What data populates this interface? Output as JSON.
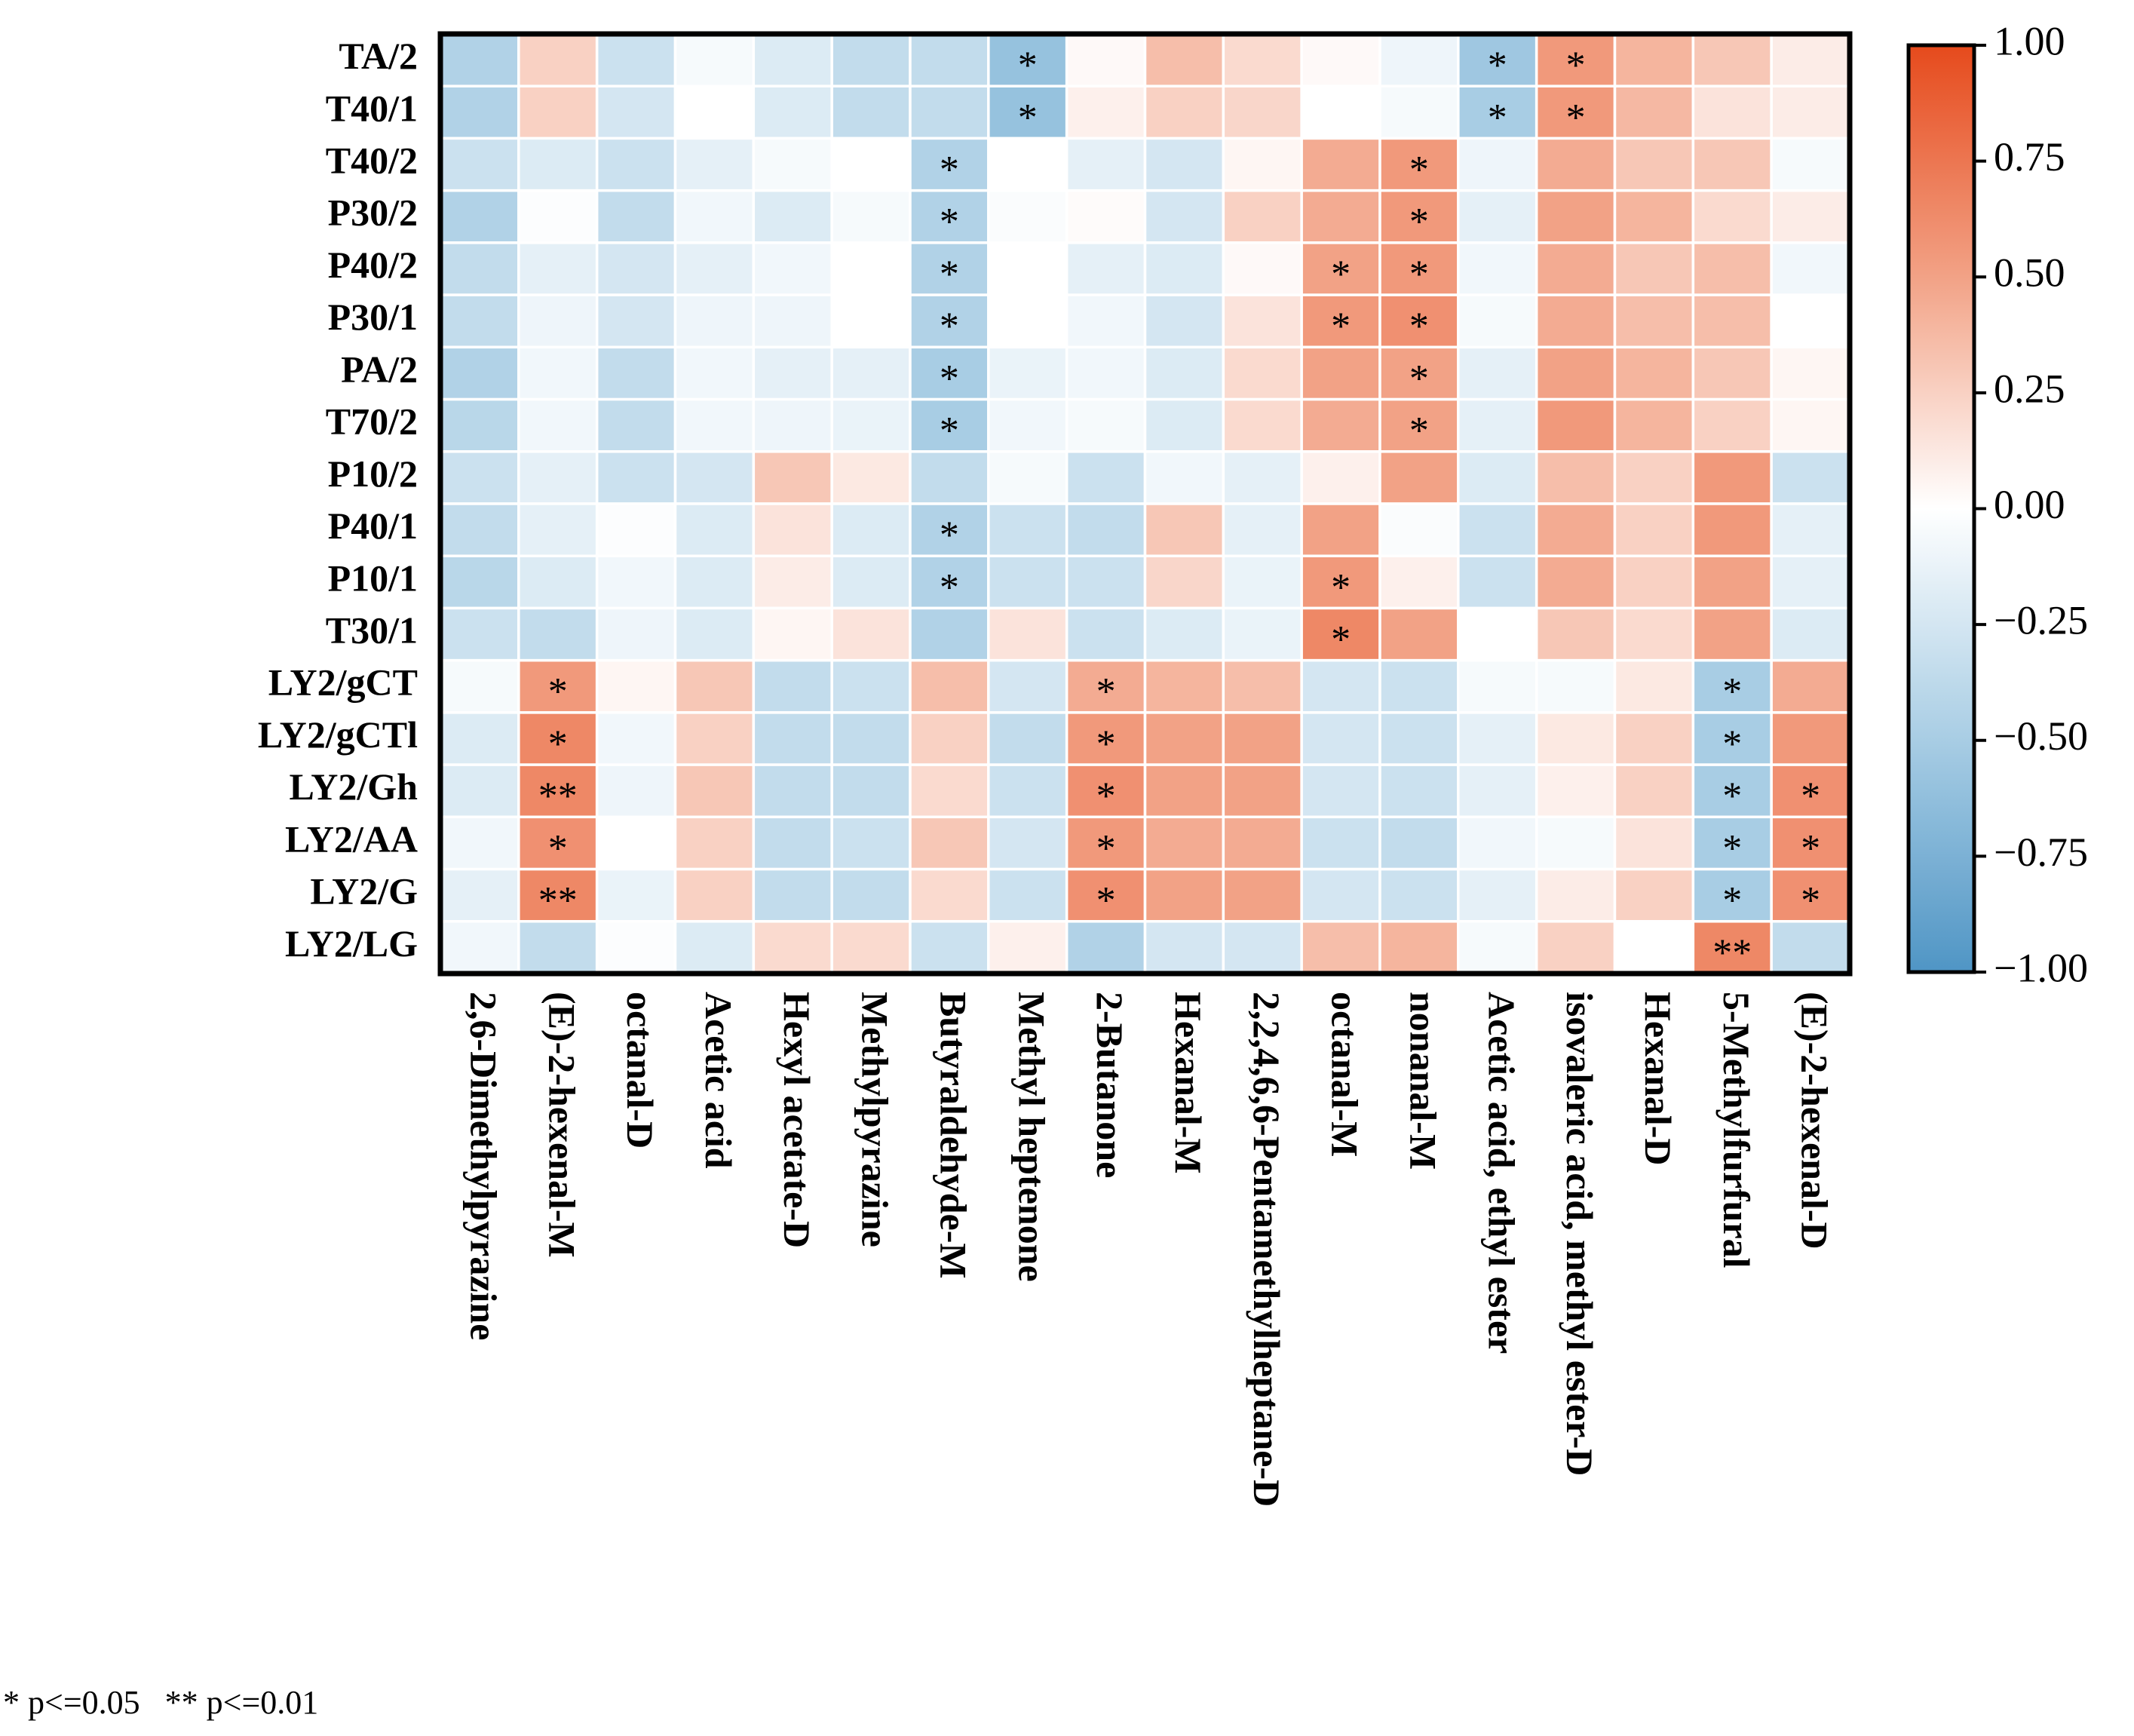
{
  "chart_data": {
    "type": "heatmap",
    "rows": [
      "TA/2",
      "T40/1",
      "T40/2",
      "P30/2",
      "P40/2",
      "P30/1",
      "PA/2",
      "T70/2",
      "P10/2",
      "P40/1",
      "P10/1",
      "T30/1",
      "LY2/gCT",
      "LY2/gCTl",
      "LY2/Gh",
      "LY2/AA",
      "LY2/G",
      "LY2/LG"
    ],
    "columns": [
      "2,6-Dimethylpyrazine",
      "(E)-2-hexenal-M",
      "octanal-D",
      "Acetic acid",
      "Hexyl acetate-D",
      "Methylpyrazine",
      "Butyraldehyde-M",
      "Methyl heptenone",
      "2-Butanone",
      "Hexanal-M",
      "2,2,4,6,6-Pentamethylheptane-D",
      "octanal-M",
      "nonanal-M",
      "Acetic acid, ethyl ester",
      "isovaleric acid, methyl ester-D",
      "Hexanal-D",
      "5-Methylfurfural",
      "(E)-2-hexenal-D"
    ],
    "values": [
      [
        -0.45,
        0.25,
        -0.3,
        -0.05,
        -0.2,
        -0.35,
        -0.35,
        -0.6,
        0.03,
        0.35,
        0.2,
        0.03,
        -0.1,
        -0.55,
        0.55,
        0.4,
        0.3,
        0.1
      ],
      [
        -0.45,
        0.25,
        -0.25,
        0.0,
        -0.2,
        -0.35,
        -0.35,
        -0.6,
        0.08,
        0.25,
        0.22,
        0.0,
        -0.05,
        -0.5,
        0.55,
        0.38,
        0.15,
        0.1
      ],
      [
        -0.3,
        -0.2,
        -0.3,
        -0.15,
        -0.05,
        0.0,
        -0.45,
        0.0,
        -0.15,
        -0.25,
        0.05,
        0.45,
        0.55,
        -0.1,
        0.45,
        0.3,
        0.3,
        -0.05
      ],
      [
        -0.45,
        -0.02,
        -0.35,
        -0.08,
        -0.2,
        -0.05,
        -0.45,
        -0.03,
        0.02,
        -0.25,
        0.25,
        0.45,
        0.55,
        -0.15,
        0.5,
        0.4,
        0.2,
        0.1
      ],
      [
        -0.35,
        -0.15,
        -0.25,
        -0.15,
        -0.08,
        0.0,
        -0.45,
        0.0,
        -0.15,
        -0.2,
        0.03,
        0.5,
        0.55,
        -0.08,
        0.45,
        0.3,
        0.35,
        -0.08
      ],
      [
        -0.35,
        -0.1,
        -0.25,
        -0.1,
        -0.1,
        0.0,
        -0.45,
        0.0,
        -0.08,
        -0.25,
        0.15,
        0.55,
        0.6,
        -0.05,
        0.45,
        0.35,
        0.35,
        0.0
      ],
      [
        -0.45,
        -0.08,
        -0.35,
        -0.08,
        -0.15,
        -0.15,
        -0.5,
        -0.12,
        -0.08,
        -0.2,
        0.2,
        0.5,
        0.5,
        -0.15,
        0.5,
        0.4,
        0.3,
        0.05
      ],
      [
        -0.4,
        -0.08,
        -0.35,
        -0.08,
        -0.1,
        -0.12,
        -0.5,
        -0.08,
        -0.05,
        -0.2,
        0.2,
        0.45,
        0.5,
        -0.15,
        0.55,
        0.4,
        0.25,
        0.05
      ],
      [
        -0.3,
        -0.15,
        -0.3,
        -0.25,
        0.3,
        0.12,
        -0.35,
        -0.05,
        -0.3,
        -0.08,
        -0.15,
        0.08,
        0.5,
        -0.2,
        0.35,
        0.25,
        0.55,
        -0.3
      ],
      [
        -0.35,
        -0.15,
        -0.02,
        -0.2,
        0.15,
        -0.2,
        -0.45,
        -0.3,
        -0.35,
        0.3,
        -0.15,
        0.5,
        -0.03,
        -0.3,
        0.45,
        0.25,
        0.55,
        -0.15
      ],
      [
        -0.4,
        -0.2,
        -0.08,
        -0.2,
        0.1,
        -0.2,
        -0.45,
        -0.3,
        -0.3,
        0.22,
        -0.12,
        0.55,
        0.08,
        -0.3,
        0.45,
        0.25,
        0.5,
        -0.15
      ],
      [
        -0.3,
        -0.35,
        -0.1,
        -0.2,
        0.05,
        0.15,
        -0.45,
        0.15,
        -0.3,
        -0.2,
        -0.12,
        0.65,
        0.5,
        0.0,
        0.3,
        0.2,
        0.5,
        -0.2
      ],
      [
        -0.05,
        0.55,
        0.05,
        0.3,
        -0.35,
        -0.3,
        0.35,
        -0.25,
        0.45,
        0.4,
        0.35,
        -0.25,
        -0.3,
        -0.05,
        -0.05,
        0.12,
        -0.5,
        0.45
      ],
      [
        -0.2,
        0.65,
        -0.08,
        0.25,
        -0.35,
        -0.35,
        0.25,
        -0.35,
        0.55,
        0.5,
        0.5,
        -0.25,
        -0.3,
        -0.15,
        0.12,
        0.25,
        -0.5,
        0.55
      ],
      [
        -0.2,
        0.65,
        -0.1,
        0.3,
        -0.35,
        -0.35,
        0.2,
        -0.3,
        0.6,
        0.5,
        0.5,
        -0.25,
        -0.3,
        -0.15,
        0.08,
        0.25,
        -0.5,
        0.6
      ],
      [
        -0.08,
        0.6,
        0.0,
        0.25,
        -0.35,
        -0.3,
        0.3,
        -0.25,
        0.55,
        0.45,
        0.45,
        -0.3,
        -0.35,
        -0.08,
        -0.05,
        0.15,
        -0.5,
        0.6
      ],
      [
        -0.15,
        0.65,
        -0.12,
        0.25,
        -0.35,
        -0.35,
        0.2,
        -0.3,
        0.6,
        0.5,
        0.5,
        -0.25,
        -0.3,
        -0.15,
        0.1,
        0.25,
        -0.5,
        0.6
      ],
      [
        -0.08,
        -0.35,
        -0.02,
        -0.2,
        0.2,
        0.2,
        -0.3,
        0.08,
        -0.45,
        -0.25,
        -0.25,
        0.35,
        0.4,
        -0.05,
        0.25,
        0.0,
        0.65,
        -0.35
      ]
    ],
    "annotations": [
      {
        "row": "TA/2",
        "column": "Methyl heptenone",
        "label": "*"
      },
      {
        "row": "TA/2",
        "column": "Acetic acid, ethyl ester",
        "label": "*"
      },
      {
        "row": "TA/2",
        "column": "isovaleric acid, methyl ester-D",
        "label": "*"
      },
      {
        "row": "T40/1",
        "column": "Methyl heptenone",
        "label": "*"
      },
      {
        "row": "T40/1",
        "column": "Acetic acid, ethyl ester",
        "label": "*"
      },
      {
        "row": "T40/1",
        "column": "isovaleric acid, methyl ester-D",
        "label": "*"
      },
      {
        "row": "T40/2",
        "column": "Butyraldehyde-M",
        "label": "*"
      },
      {
        "row": "T40/2",
        "column": "nonanal-M",
        "label": "*"
      },
      {
        "row": "P30/2",
        "column": "Butyraldehyde-M",
        "label": "*"
      },
      {
        "row": "P30/2",
        "column": "nonanal-M",
        "label": "*"
      },
      {
        "row": "P40/2",
        "column": "Butyraldehyde-M",
        "label": "*"
      },
      {
        "row": "P40/2",
        "column": "octanal-M",
        "label": "*"
      },
      {
        "row": "P40/2",
        "column": "nonanal-M",
        "label": "*"
      },
      {
        "row": "P30/1",
        "column": "Butyraldehyde-M",
        "label": "*"
      },
      {
        "row": "P30/1",
        "column": "octanal-M",
        "label": "*"
      },
      {
        "row": "P30/1",
        "column": "nonanal-M",
        "label": "*"
      },
      {
        "row": "PA/2",
        "column": "Butyraldehyde-M",
        "label": "*"
      },
      {
        "row": "PA/2",
        "column": "nonanal-M",
        "label": "*"
      },
      {
        "row": "T70/2",
        "column": "Butyraldehyde-M",
        "label": "*"
      },
      {
        "row": "T70/2",
        "column": "nonanal-M",
        "label": "*"
      },
      {
        "row": "P40/1",
        "column": "Butyraldehyde-M",
        "label": "*"
      },
      {
        "row": "P10/1",
        "column": "Butyraldehyde-M",
        "label": "*"
      },
      {
        "row": "P10/1",
        "column": "octanal-M",
        "label": "*"
      },
      {
        "row": "T30/1",
        "column": "octanal-M",
        "label": "*"
      },
      {
        "row": "LY2/gCT",
        "column": "(E)-2-hexenal-M",
        "label": "*"
      },
      {
        "row": "LY2/gCT",
        "column": "2-Butanone",
        "label": "*"
      },
      {
        "row": "LY2/gCT",
        "column": "5-Methylfurfural",
        "label": "*"
      },
      {
        "row": "LY2/gCTl",
        "column": "(E)-2-hexenal-M",
        "label": "*"
      },
      {
        "row": "LY2/gCTl",
        "column": "2-Butanone",
        "label": "*"
      },
      {
        "row": "LY2/gCTl",
        "column": "5-Methylfurfural",
        "label": "*"
      },
      {
        "row": "LY2/Gh",
        "column": "(E)-2-hexenal-M",
        "label": "**"
      },
      {
        "row": "LY2/Gh",
        "column": "2-Butanone",
        "label": "*"
      },
      {
        "row": "LY2/Gh",
        "column": "5-Methylfurfural",
        "label": "*"
      },
      {
        "row": "LY2/Gh",
        "column": "(E)-2-hexenal-D",
        "label": "*"
      },
      {
        "row": "LY2/AA",
        "column": "(E)-2-hexenal-M",
        "label": "*"
      },
      {
        "row": "LY2/AA",
        "column": "2-Butanone",
        "label": "*"
      },
      {
        "row": "LY2/AA",
        "column": "5-Methylfurfural",
        "label": "*"
      },
      {
        "row": "LY2/AA",
        "column": "(E)-2-hexenal-D",
        "label": "*"
      },
      {
        "row": "LY2/G",
        "column": "(E)-2-hexenal-M",
        "label": "**"
      },
      {
        "row": "LY2/G",
        "column": "2-Butanone",
        "label": "*"
      },
      {
        "row": "LY2/G",
        "column": "5-Methylfurfural",
        "label": "*"
      },
      {
        "row": "LY2/G",
        "column": "(E)-2-hexenal-D",
        "label": "*"
      },
      {
        "row": "LY2/LG",
        "column": "5-Methylfurfural",
        "label": "**"
      }
    ],
    "colorscale": [
      [
        -1,
        "#4f95c5"
      ],
      [
        -0.5,
        "#a8cde4"
      ],
      [
        0,
        "#ffffff"
      ],
      [
        0.5,
        "#f2a286"
      ],
      [
        1,
        "#e64a1c"
      ]
    ],
    "clim": [
      -1,
      1
    ],
    "cticks": [
      {
        "value": 1,
        "label": "1.00"
      },
      {
        "value": 0.75,
        "label": "0.75"
      },
      {
        "value": 0.5,
        "label": "0.50"
      },
      {
        "value": 0.25,
        "label": "0.25"
      },
      {
        "value": 0,
        "label": "0.00"
      },
      {
        "value": -0.25,
        "label": "−0.25"
      },
      {
        "value": -0.5,
        "label": "−0.50"
      },
      {
        "value": -0.75,
        "label": "−0.75"
      },
      {
        "value": -1,
        "label": "−1.00"
      }
    ],
    "note": "* p<=0.05   ** p<=0.01"
  }
}
